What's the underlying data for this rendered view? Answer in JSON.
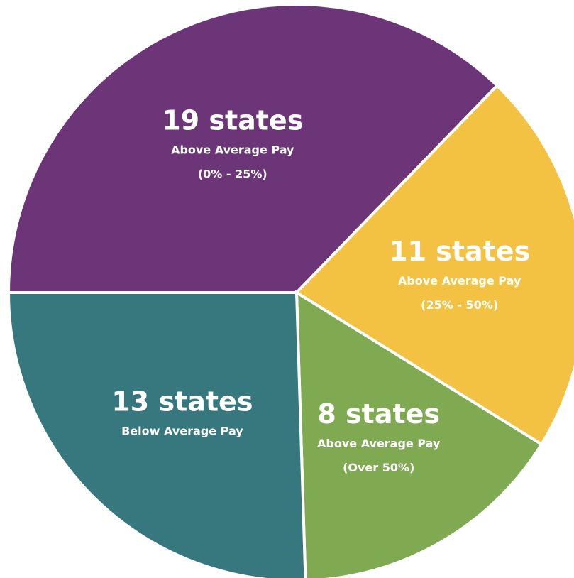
{
  "chart_data": {
    "type": "pie",
    "categories": [
      [
        "Above Average Pay",
        "(0% - 25%)"
      ],
      [
        "Above Average Pay",
        "(25% - 50%)"
      ],
      [
        "Above Average Pay",
        "(Over 50%)"
      ],
      [
        "Below Average Pay"
      ]
    ],
    "values": [
      19,
      11,
      8,
      13
    ],
    "value_labels": [
      "19 states",
      "11 states",
      "8 states",
      "13 states"
    ],
    "colors": [
      "#6c3578",
      "#f4c243",
      "#7faa52",
      "#36787e"
    ]
  }
}
